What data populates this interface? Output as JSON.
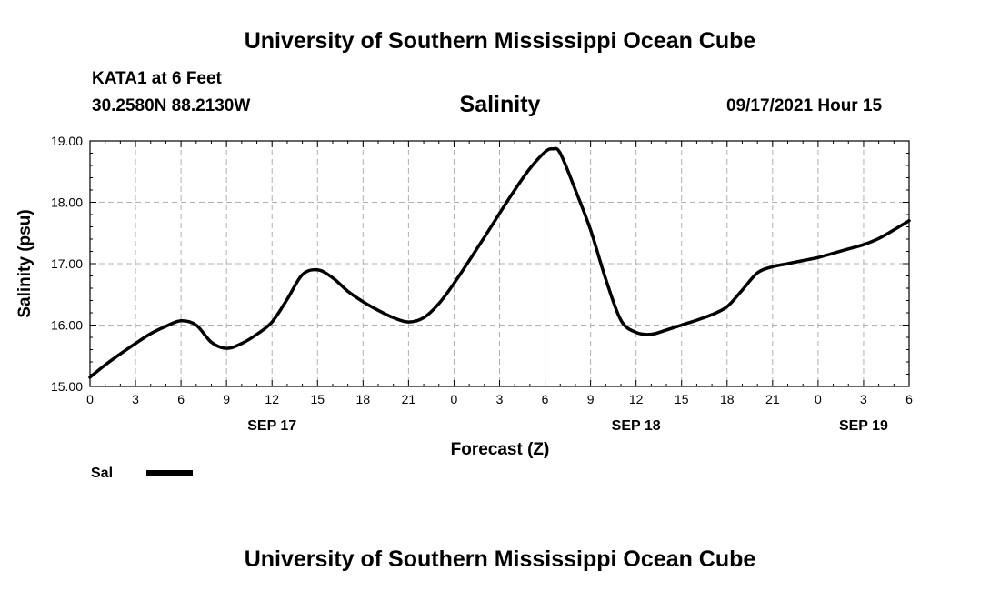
{
  "header": {
    "title_top": "University of Southern Mississippi Ocean Cube",
    "station": "KATA1 at 6 Feet",
    "coords": "30.2580N  88.2130W",
    "variable": "Salinity",
    "datetime": "09/17/2021 Hour 15"
  },
  "footer": {
    "title_bottom": "University of Southern Mississippi Ocean Cube"
  },
  "chart_data": {
    "type": "line",
    "xlabel": "Forecast (Z)",
    "ylabel": "Salinity (psu)",
    "xlim": [
      0,
      54
    ],
    "ylim": [
      15.0,
      19.0
    ],
    "x_ticks": [
      0,
      3,
      6,
      9,
      12,
      15,
      18,
      21,
      24,
      27,
      30,
      33,
      36,
      39,
      42,
      45,
      48,
      51,
      54
    ],
    "x_tick_labels": [
      "0",
      "3",
      "6",
      "9",
      "12",
      "15",
      "18",
      "21",
      "0",
      "3",
      "6",
      "9",
      "12",
      "15",
      "18",
      "21",
      "0",
      "3",
      "6"
    ],
    "y_ticks": [
      15.0,
      16.0,
      17.0,
      18.0,
      19.0
    ],
    "y_tick_labels": [
      "15.00",
      "16.00",
      "17.00",
      "18.00",
      "19.00"
    ],
    "date_labels": [
      {
        "x": 12,
        "label": "SEP 17"
      },
      {
        "x": 36,
        "label": "SEP 18"
      },
      {
        "x": 51,
        "label": "SEP 19"
      }
    ],
    "grid": true,
    "legend_position": "bottom-left",
    "series": [
      {
        "name": "Sal",
        "color": "#000000",
        "x": [
          0,
          1,
          2,
          3,
          4,
          5,
          6,
          7,
          8,
          9,
          10,
          11,
          12,
          13,
          14,
          15,
          16,
          17,
          18,
          19,
          20,
          21,
          22,
          23,
          24,
          25,
          26,
          27,
          28,
          29,
          30,
          30.5,
          31,
          32,
          33,
          34,
          35,
          36,
          37,
          38,
          39,
          40,
          41,
          42,
          43,
          44,
          45,
          46,
          47,
          48,
          49,
          50,
          51,
          52,
          53,
          54
        ],
        "y": [
          15.15,
          15.35,
          15.53,
          15.7,
          15.86,
          15.98,
          16.07,
          16.0,
          15.72,
          15.62,
          15.7,
          15.85,
          16.05,
          16.42,
          16.82,
          16.9,
          16.77,
          16.55,
          16.38,
          16.24,
          16.12,
          16.05,
          16.12,
          16.35,
          16.68,
          17.05,
          17.43,
          17.82,
          18.2,
          18.55,
          18.82,
          18.87,
          18.8,
          18.2,
          17.55,
          16.75,
          16.08,
          15.88,
          15.85,
          15.92,
          16.0,
          16.08,
          16.17,
          16.3,
          16.57,
          16.85,
          16.95,
          17.0,
          17.05,
          17.1,
          17.17,
          17.24,
          17.31,
          17.41,
          17.55,
          17.7
        ]
      }
    ]
  }
}
